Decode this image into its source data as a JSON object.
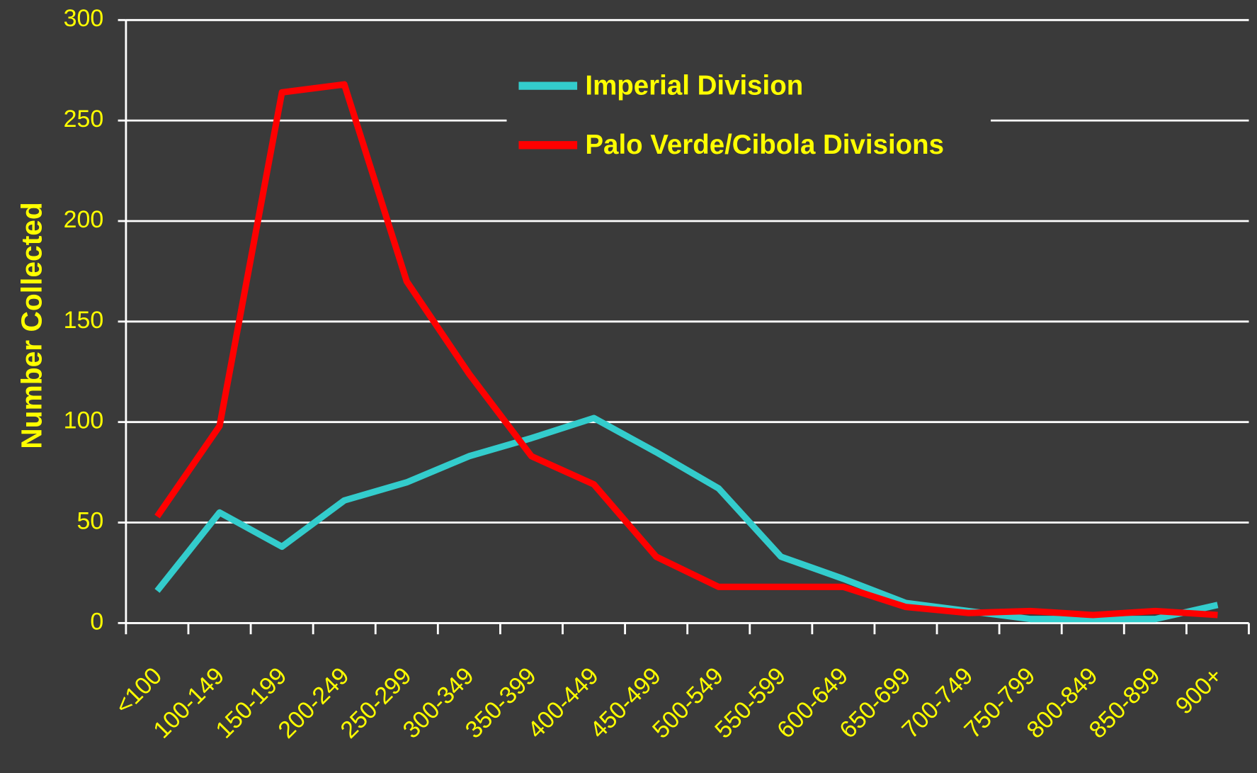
{
  "chart_data": {
    "type": "line",
    "ylabel": "Number Collected",
    "categories": [
      "<100",
      "100-149",
      "150-199",
      "200-249",
      "250-299",
      "300-349",
      "350-399",
      "400-449",
      "450-499",
      "500-549",
      "550-599",
      "600-649",
      "650-699",
      "700-749",
      "750-799",
      "800-849",
      "850-899",
      "900+"
    ],
    "series": [
      {
        "name": "Imperial Division",
        "color": "#33cccc",
        "values": [
          16,
          55,
          38,
          61,
          70,
          83,
          92,
          102,
          85,
          67,
          33,
          22,
          10,
          6,
          2,
          2,
          2,
          9
        ]
      },
      {
        "name": "Palo Verde/Cibola Divisions",
        "color": "#ff0000",
        "values": [
          53,
          98,
          264,
          268,
          170,
          124,
          83,
          69,
          33,
          18,
          18,
          18,
          8,
          5,
          6,
          4,
          6,
          4
        ]
      }
    ],
    "ylim": [
      0,
      300
    ],
    "yticks": [
      0,
      50,
      100,
      150,
      200,
      250,
      300
    ],
    "grid": true,
    "legend": "upper center"
  }
}
